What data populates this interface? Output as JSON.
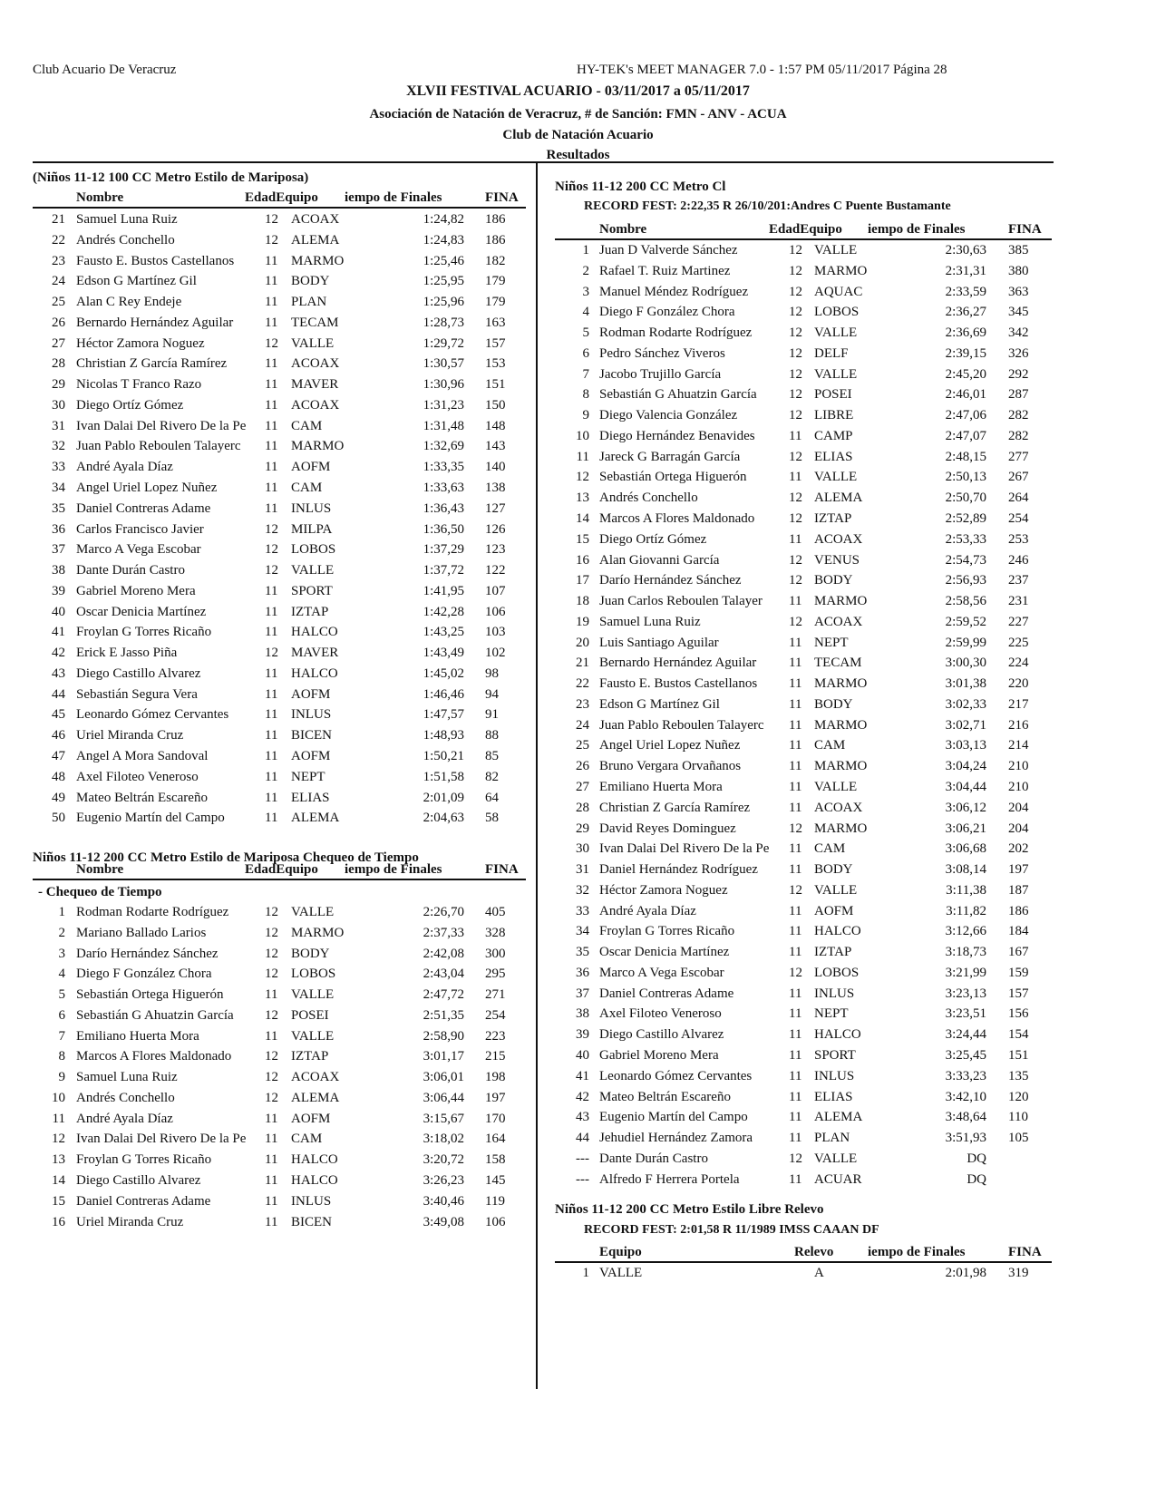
{
  "header": {
    "club": "Club Acuario De Veracruz",
    "software": "HY-TEK's MEET MANAGER 7.0 - 1:57 PM  05/11/2017  Página 28",
    "meet": "XLVII  FESTIVAL ACUARIO - 03/11/2017 a 05/11/2017",
    "association": "Asociación de Natación de Veracruz, # de Sanción: FMN - ANV - ACUA",
    "host": "Club de Natación Acuario",
    "results": "Resultados"
  },
  "columns": {
    "name": "Nombre",
    "age_team": "EdadEquipo",
    "time": "iempo de Finales",
    "fina": "FINA",
    "team": "Equipo",
    "relay": "Relevo"
  },
  "left": {
    "event1": {
      "title": "(Niños 11-12 100 CC Metro Estilo de Mariposa)",
      "rows": [
        [
          "21",
          "Samuel Luna Ruiz",
          "12",
          "ACOAX",
          "1:24,82",
          "186"
        ],
        [
          "22",
          "Andrés Conchello",
          "12",
          "ALEMA",
          "1:24,83",
          "186"
        ],
        [
          "23",
          "Fausto E. Bustos Castellanos",
          "11",
          "MARMO",
          "1:25,46",
          "182"
        ],
        [
          "24",
          "Edson G Martínez Gil",
          "11",
          "BODY",
          "1:25,95",
          "179"
        ],
        [
          "25",
          "Alan C Rey Endeje",
          "11",
          "PLAN",
          "1:25,96",
          "179"
        ],
        [
          "26",
          "Bernardo Hernández Aguilar",
          "11",
          "TECAM",
          "1:28,73",
          "163"
        ],
        [
          "27",
          "Héctor Zamora Noguez",
          "12",
          "VALLE",
          "1:29,72",
          "157"
        ],
        [
          "28",
          "Christian Z García Ramírez",
          "11",
          "ACOAX",
          "1:30,57",
          "153"
        ],
        [
          "29",
          "Nicolas T Franco Razo",
          "11",
          "MAVER",
          "1:30,96",
          "151"
        ],
        [
          "30",
          "Diego Ortíz Gómez",
          "11",
          "ACOAX",
          "1:31,23",
          "150"
        ],
        [
          "31",
          "Ivan Dalai Del Rivero De la Pe",
          "11",
          "CAM",
          "1:31,48",
          "148"
        ],
        [
          "32",
          "Juan Pablo Reboulen Talayerc",
          "11",
          "MARMO",
          "1:32,69",
          "143"
        ],
        [
          "33",
          "André Ayala Díaz",
          "11",
          "AOFM",
          "1:33,35",
          "140"
        ],
        [
          "34",
          "Angel Uriel Lopez Nuñez",
          "11",
          "CAM",
          "1:33,63",
          "138"
        ],
        [
          "35",
          "Daniel Contreras Adame",
          "11",
          "INLUS",
          "1:36,43",
          "127"
        ],
        [
          "36",
          "Carlos Francisco Javier",
          "12",
          "MILPA",
          "1:36,50",
          "126"
        ],
        [
          "37",
          "Marco A Vega Escobar",
          "12",
          "LOBOS",
          "1:37,29",
          "123"
        ],
        [
          "38",
          "Dante Durán Castro",
          "12",
          "VALLE",
          "1:37,72",
          "122"
        ],
        [
          "39",
          "Gabriel Moreno Mera",
          "11",
          "SPORT",
          "1:41,95",
          "107"
        ],
        [
          "40",
          "Oscar Denicia Martínez",
          "11",
          "IZTAP",
          "1:42,28",
          "106"
        ],
        [
          "41",
          "Froylan G Torres Ricaño",
          "11",
          "HALCO",
          "1:43,25",
          "103"
        ],
        [
          "42",
          "Erick E Jasso Piña",
          "12",
          "MAVER",
          "1:43,49",
          "102"
        ],
        [
          "43",
          "Diego Castillo Alvarez",
          "11",
          "HALCO",
          "1:45,02",
          "98"
        ],
        [
          "44",
          "Sebastián Segura Vera",
          "11",
          "AOFM",
          "1:46,46",
          "94"
        ],
        [
          "45",
          "Leonardo Gómez Cervantes",
          "11",
          "INLUS",
          "1:47,57",
          "91"
        ],
        [
          "46",
          "Uriel Miranda Cruz",
          "11",
          "BICEN",
          "1:48,93",
          "88"
        ],
        [
          "47",
          "Angel A Mora Sandoval",
          "11",
          "AOFM",
          "1:50,21",
          "85"
        ],
        [
          "48",
          "Axel Filoteo Veneroso",
          "11",
          "NEPT",
          "1:51,58",
          "82"
        ],
        [
          "49",
          "Mateo Beltrán Escareño",
          "11",
          "ELIAS",
          "2:01,09",
          "64"
        ],
        [
          "50",
          "Eugenio Martín del Campo",
          "11",
          "ALEMA",
          "2:04,63",
          "58"
        ]
      ]
    },
    "event2": {
      "title": "Niños 11-12 200 CC Metro Estilo de Mariposa Chequeo de Tiempo",
      "subheader": "- Chequeo de Tiempo",
      "rows": [
        [
          "1",
          "Rodman Rodarte Rodríguez",
          "12",
          "VALLE",
          "2:26,70",
          "405"
        ],
        [
          "2",
          "Mariano Ballado Larios",
          "12",
          "MARMO",
          "2:37,33",
          "328"
        ],
        [
          "3",
          "Darío Hernández Sánchez",
          "12",
          "BODY",
          "2:42,08",
          "300"
        ],
        [
          "4",
          "Diego F González Chora",
          "12",
          "LOBOS",
          "2:43,04",
          "295"
        ],
        [
          "5",
          "Sebastián Ortega Higuerón",
          "11",
          "VALLE",
          "2:47,72",
          "271"
        ],
        [
          "6",
          "Sebastián G Ahuatzin García",
          "12",
          "POSEI",
          "2:51,35",
          "254"
        ],
        [
          "7",
          "Emiliano Huerta Mora",
          "11",
          "VALLE",
          "2:58,90",
          "223"
        ],
        [
          "8",
          "Marcos A Flores Maldonado",
          "12",
          "IZTAP",
          "3:01,17",
          "215"
        ],
        [
          "9",
          "Samuel Luna Ruiz",
          "12",
          "ACOAX",
          "3:06,01",
          "198"
        ],
        [
          "10",
          "Andrés Conchello",
          "12",
          "ALEMA",
          "3:06,44",
          "197"
        ],
        [
          "11",
          "André Ayala Díaz",
          "11",
          "AOFM",
          "3:15,67",
          "170"
        ],
        [
          "12",
          "Ivan Dalai Del Rivero De la Pe",
          "11",
          "CAM",
          "3:18,02",
          "164"
        ],
        [
          "13",
          "Froylan G Torres Ricaño",
          "11",
          "HALCO",
          "3:20,72",
          "158"
        ],
        [
          "14",
          "Diego Castillo Alvarez",
          "11",
          "HALCO",
          "3:26,23",
          "145"
        ],
        [
          "15",
          "Daniel Contreras Adame",
          "11",
          "INLUS",
          "3:40,46",
          "119"
        ],
        [
          "16",
          "Uriel Miranda Cruz",
          "11",
          "BICEN",
          "3:49,08",
          "106"
        ]
      ]
    }
  },
  "right": {
    "event1": {
      "title": "Niños 11-12 200 CC Metro Cl",
      "record": "RECORD FEST:     2:22,35  R  26/10/201:Andres C Puente Bustamante",
      "rows": [
        [
          "1",
          "Juan D Valverde Sánchez",
          "12",
          "VALLE",
          "2:30,63",
          "385"
        ],
        [
          "2",
          "Rafael T. Ruiz Martinez",
          "12",
          "MARMO",
          "2:31,31",
          "380"
        ],
        [
          "3",
          "Manuel Méndez Rodríguez",
          "12",
          "AQUAC",
          "2:33,59",
          "363"
        ],
        [
          "4",
          "Diego F González Chora",
          "12",
          "LOBOS",
          "2:36,27",
          "345"
        ],
        [
          "5",
          "Rodman Rodarte Rodríguez",
          "12",
          "VALLE",
          "2:36,69",
          "342"
        ],
        [
          "6",
          "Pedro Sánchez Viveros",
          "12",
          "DELF",
          "2:39,15",
          "326"
        ],
        [
          "7",
          "Jacobo Trujillo García",
          "12",
          "VALLE",
          "2:45,20",
          "292"
        ],
        [
          "8",
          "Sebastián G Ahuatzin García",
          "12",
          "POSEI",
          "2:46,01",
          "287"
        ],
        [
          "9",
          "Diego Valencia González",
          "12",
          "LIBRE",
          "2:47,06",
          "282"
        ],
        [
          "10",
          "Diego Hernández Benavides",
          "11",
          "CAMP",
          "2:47,07",
          "282"
        ],
        [
          "11",
          "Jareck G Barragán García",
          "12",
          "ELIAS",
          "2:48,15",
          "277"
        ],
        [
          "12",
          "Sebastián Ortega Higuerón",
          "11",
          "VALLE",
          "2:50,13",
          "267"
        ],
        [
          "13",
          "Andrés Conchello",
          "12",
          "ALEMA",
          "2:50,70",
          "264"
        ],
        [
          "14",
          "Marcos A Flores Maldonado",
          "12",
          "IZTAP",
          "2:52,89",
          "254"
        ],
        [
          "15",
          "Diego Ortíz Gómez",
          "11",
          "ACOAX",
          "2:53,33",
          "253"
        ],
        [
          "16",
          "Alan Giovanni García",
          "12",
          "VENUS",
          "2:54,73",
          "246"
        ],
        [
          "17",
          "Darío Hernández Sánchez",
          "12",
          "BODY",
          "2:56,93",
          "237"
        ],
        [
          "18",
          "Juan Carlos Reboulen Talayer",
          "11",
          "MARMO",
          "2:58,56",
          "231"
        ],
        [
          "19",
          "Samuel Luna Ruiz",
          "12",
          "ACOAX",
          "2:59,52",
          "227"
        ],
        [
          "20",
          "Luis Santiago Aguilar",
          "11",
          "NEPT",
          "2:59,99",
          "225"
        ],
        [
          "21",
          "Bernardo Hernández Aguilar",
          "11",
          "TECAM",
          "3:00,30",
          "224"
        ],
        [
          "22",
          "Fausto E. Bustos Castellanos",
          "11",
          "MARMO",
          "3:01,38",
          "220"
        ],
        [
          "23",
          "Edson G Martínez Gil",
          "11",
          "BODY",
          "3:02,33",
          "217"
        ],
        [
          "24",
          "Juan Pablo Reboulen Talayerc",
          "11",
          "MARMO",
          "3:02,71",
          "216"
        ],
        [
          "25",
          "Angel Uriel Lopez Nuñez",
          "11",
          "CAM",
          "3:03,13",
          "214"
        ],
        [
          "26",
          "Bruno Vergara Orvañanos",
          "11",
          "MARMO",
          "3:04,24",
          "210"
        ],
        [
          "27",
          "Emiliano Huerta Mora",
          "11",
          "VALLE",
          "3:04,44",
          "210"
        ],
        [
          "28",
          "Christian Z García Ramírez",
          "11",
          "ACOAX",
          "3:06,12",
          "204"
        ],
        [
          "29",
          "David Reyes Dominguez",
          "12",
          "MARMO",
          "3:06,21",
          "204"
        ],
        [
          "30",
          "Ivan Dalai Del Rivero De la Pe",
          "11",
          "CAM",
          "3:06,68",
          "202"
        ],
        [
          "31",
          "Daniel Hernández Rodríguez",
          "11",
          "BODY",
          "3:08,14",
          "197"
        ],
        [
          "32",
          "Héctor Zamora Noguez",
          "12",
          "VALLE",
          "3:11,38",
          "187"
        ],
        [
          "33",
          "André Ayala Díaz",
          "11",
          "AOFM",
          "3:11,82",
          "186"
        ],
        [
          "34",
          "Froylan G Torres Ricaño",
          "11",
          "HALCO",
          "3:12,66",
          "184"
        ],
        [
          "35",
          "Oscar Denicia Martínez",
          "11",
          "IZTAP",
          "3:18,73",
          "167"
        ],
        [
          "36",
          "Marco A Vega Escobar",
          "12",
          "LOBOS",
          "3:21,99",
          "159"
        ],
        [
          "37",
          "Daniel Contreras Adame",
          "11",
          "INLUS",
          "3:23,13",
          "157"
        ],
        [
          "38",
          "Axel Filoteo Veneroso",
          "11",
          "NEPT",
          "3:23,51",
          "156"
        ],
        [
          "39",
          "Diego Castillo Alvarez",
          "11",
          "HALCO",
          "3:24,44",
          "154"
        ],
        [
          "40",
          "Gabriel Moreno Mera",
          "11",
          "SPORT",
          "3:25,45",
          "151"
        ],
        [
          "41",
          "Leonardo Gómez Cervantes",
          "11",
          "INLUS",
          "3:33,23",
          "135"
        ],
        [
          "42",
          "Mateo Beltrán Escareño",
          "11",
          "ELIAS",
          "3:42,10",
          "120"
        ],
        [
          "43",
          "Eugenio Martín del Campo",
          "11",
          "ALEMA",
          "3:48,64",
          "110"
        ],
        [
          "44",
          "Jehudiel Hernández Zamora",
          "11",
          "PLAN",
          "3:51,93",
          "105"
        ],
        [
          "---",
          "Dante Durán Castro",
          "12",
          "VALLE",
          "DQ",
          ""
        ],
        [
          "---",
          "Alfredo F Herrera Portela",
          "11",
          "ACUAR",
          "DQ",
          ""
        ]
      ]
    },
    "event2": {
      "title": "Niños 11-12 200 CC Metro Estilo Libre Relevo",
      "record": "RECORD FEST:     2:01,58  R  11/1989      IMSS CAAAN DF",
      "rows": [
        [
          "1",
          "VALLE",
          "A",
          "2:01,98",
          "319"
        ]
      ]
    }
  }
}
